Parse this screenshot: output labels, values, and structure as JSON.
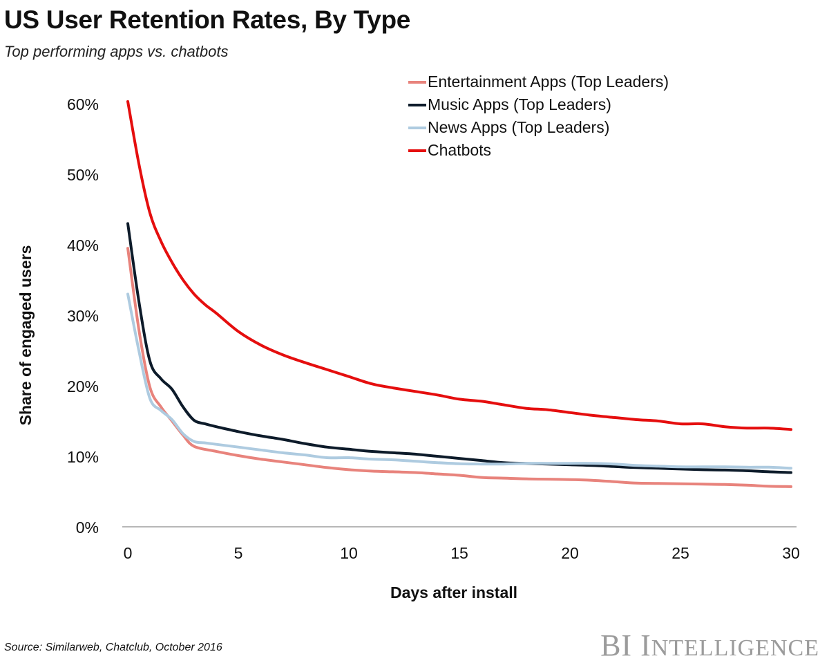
{
  "title": "US User Retention Rates, By Type",
  "subtitle": "Top performing apps vs. chatbots",
  "source": "Source: Similarweb, Chatclub, October 2016",
  "brand": {
    "first": "BI",
    "second_initial": "I",
    "second_rest": "NTELLIGENCE"
  },
  "chart_data": {
    "type": "line",
    "xlabel": "Days after install",
    "ylabel": "Share of engaged users",
    "xlim": [
      0,
      30
    ],
    "ylim": [
      0,
      60
    ],
    "x_ticks": [
      0,
      5,
      10,
      15,
      20,
      25,
      30
    ],
    "y_ticks": [
      0,
      10,
      20,
      30,
      40,
      50,
      60
    ],
    "y_tick_labels": [
      "0%",
      "10%",
      "20%",
      "30%",
      "40%",
      "50%",
      "60%"
    ],
    "grid": false,
    "legend_position": "top-right",
    "series": [
      {
        "name": "Entertainment Apps (Top Leaders)",
        "color": "#e8837c",
        "x": [
          0,
          0.5,
          1,
          1.5,
          2,
          2.5,
          3,
          4,
          5,
          6,
          7,
          8,
          9,
          10,
          11,
          12,
          13,
          14,
          15,
          16,
          17,
          18,
          19,
          20,
          21,
          22,
          23,
          24,
          25,
          26,
          27,
          28,
          29,
          30
        ],
        "y": [
          39.5,
          28,
          19.8,
          17,
          15,
          13,
          11.4,
          10.7,
          10.1,
          9.6,
          9.2,
          8.8,
          8.4,
          8.1,
          7.9,
          7.8,
          7.7,
          7.5,
          7.3,
          7.0,
          6.9,
          6.8,
          6.75,
          6.7,
          6.6,
          6.4,
          6.2,
          6.15,
          6.1,
          6.05,
          6.0,
          5.9,
          5.75,
          5.7
        ]
      },
      {
        "name": "Music Apps (Top Leaders)",
        "color": "#0d1b2a",
        "x": [
          0,
          0.5,
          1,
          1.5,
          2,
          2.5,
          3,
          3.5,
          4,
          5,
          6,
          7,
          8,
          9,
          10,
          11,
          12,
          13,
          14,
          15,
          16,
          17,
          18,
          19,
          20,
          21,
          22,
          23,
          24,
          25,
          26,
          27,
          28,
          29,
          30
        ],
        "y": [
          43,
          32,
          23.5,
          21,
          19.5,
          17,
          15.1,
          14.6,
          14.2,
          13.5,
          12.9,
          12.4,
          11.8,
          11.3,
          11.0,
          10.7,
          10.5,
          10.3,
          10.0,
          9.7,
          9.4,
          9.1,
          9.0,
          8.9,
          8.8,
          8.7,
          8.55,
          8.4,
          8.3,
          8.2,
          8.1,
          8.05,
          7.95,
          7.8,
          7.7
        ]
      },
      {
        "name": "News Apps (Top Leaders)",
        "color": "#aecbe0",
        "x": [
          0,
          0.5,
          1,
          1.5,
          2,
          2.5,
          3,
          3.5,
          4,
          5,
          6,
          7,
          8,
          9,
          10,
          11,
          12,
          13,
          14,
          15,
          16,
          17,
          18,
          19,
          20,
          21,
          22,
          23,
          24,
          25,
          26,
          27,
          28,
          29,
          30
        ],
        "y": [
          33,
          25,
          18.2,
          16.5,
          15.2,
          13.2,
          12.1,
          11.9,
          11.7,
          11.3,
          10.9,
          10.5,
          10.2,
          9.8,
          9.8,
          9.6,
          9.5,
          9.3,
          9.1,
          8.95,
          8.9,
          8.9,
          9.0,
          9.0,
          9.0,
          9.0,
          8.9,
          8.7,
          8.6,
          8.5,
          8.5,
          8.5,
          8.45,
          8.45,
          8.3
        ]
      },
      {
        "name": "Chatbots",
        "color": "#e50e0e",
        "x": [
          0,
          0.5,
          1,
          1.5,
          2,
          2.5,
          3,
          3.5,
          4,
          5,
          6,
          7,
          8,
          9,
          10,
          11,
          12,
          13,
          14,
          15,
          16,
          17,
          18,
          19,
          20,
          21,
          22,
          23,
          24,
          25,
          26,
          27,
          28,
          29,
          30
        ],
        "y": [
          60.3,
          51.5,
          44.5,
          40.5,
          37.5,
          35,
          33,
          31.5,
          30.3,
          27.7,
          25.8,
          24.4,
          23.3,
          22.3,
          21.3,
          20.3,
          19.7,
          19.2,
          18.7,
          18.1,
          17.8,
          17.3,
          16.8,
          16.6,
          16.2,
          15.8,
          15.5,
          15.2,
          15.0,
          14.6,
          14.6,
          14.2,
          14.0,
          14.0,
          13.8
        ]
      }
    ]
  }
}
